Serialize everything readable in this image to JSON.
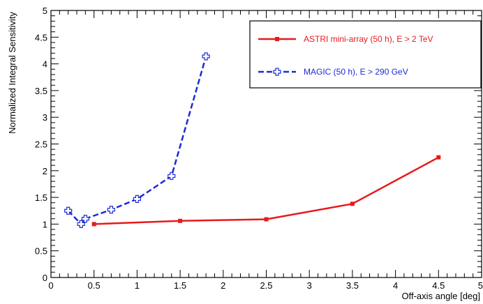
{
  "chart_data": {
    "type": "line",
    "title": "",
    "xlabel": "Off-axis angle [deg]",
    "ylabel": "Normalized Integral Sensitivity",
    "xlim": [
      0,
      5
    ],
    "ylim": [
      0,
      5
    ],
    "x_ticks": [
      "0",
      "0.5",
      "1",
      "1.5",
      "2",
      "2.5",
      "3",
      "3.5",
      "4",
      "4.5",
      "5"
    ],
    "y_ticks": [
      "0",
      "0.5",
      "1",
      "1.5",
      "2",
      "2.5",
      "3",
      "3.5",
      "4",
      "4.5",
      "5"
    ],
    "grid": false,
    "legend_position": "top-right",
    "series": [
      {
        "name": "ASTRI mini-array (50 h), E > 2 TeV",
        "color": "#e8191c",
        "line_style": "solid",
        "marker": "filled-square",
        "x": [
          0.5,
          1.5,
          2.5,
          3.5,
          4.5
        ],
        "y": [
          1.0,
          1.06,
          1.09,
          1.38,
          2.25
        ]
      },
      {
        "name": "MAGIC (50 h), E > 290 GeV",
        "color": "#1a2ad6",
        "line_style": "dashed",
        "marker": "open-cross",
        "x": [
          0.2,
          0.35,
          0.4,
          0.7,
          1.0,
          1.4,
          1.8
        ],
        "y": [
          1.25,
          1.0,
          1.1,
          1.27,
          1.47,
          1.9,
          4.14
        ]
      }
    ]
  }
}
